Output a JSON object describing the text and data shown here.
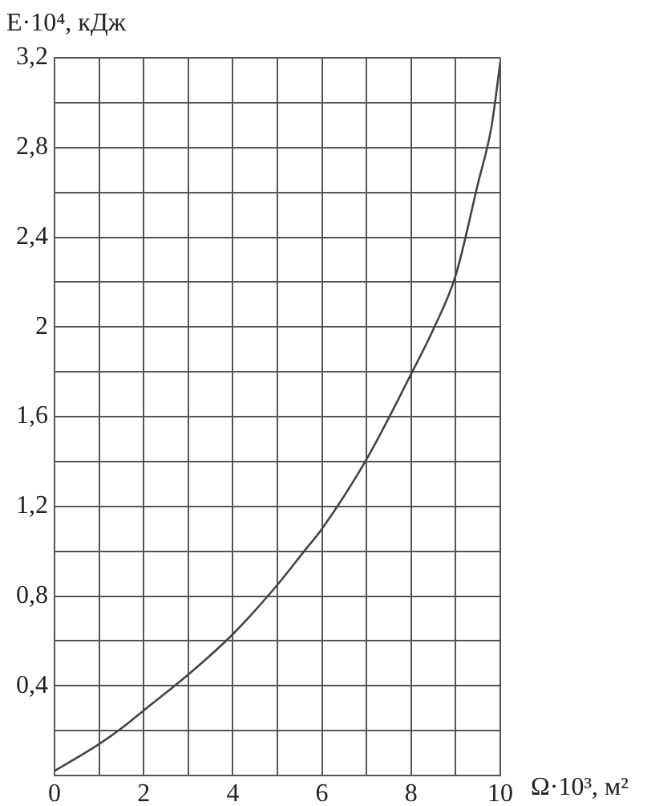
{
  "chart_data": {
    "type": "line",
    "xlabel": "Ω·10³, м²",
    "ylabel": "E·10⁴, кДж",
    "x": [
      0,
      1,
      1.5,
      2,
      3,
      4,
      5,
      5.6,
      6,
      7,
      8,
      8.5,
      9,
      9.5,
      9.8,
      10
    ],
    "series": [
      {
        "color": "#444444",
        "values": [
          0.02,
          0.14,
          0.21,
          0.29,
          0.45,
          0.63,
          0.85,
          1.0,
          1.1,
          1.41,
          1.79,
          1.99,
          2.23,
          2.64,
          2.89,
          3.18
        ]
      }
    ],
    "xlim": [
      0,
      10
    ],
    "ylim": [
      0,
      3.2
    ],
    "xticks": [
      0,
      {
        "value": 1,
        "label": null
      },
      2,
      {
        "value": 3,
        "label": null
      },
      4,
      {
        "value": 5,
        "label": null
      },
      6,
      {
        "value": 7,
        "label": null
      },
      8,
      {
        "value": 9,
        "label": null
      },
      10
    ],
    "yticks": [
      {
        "value": 0,
        "label": null
      },
      {
        "value": 0.2,
        "label": null
      },
      {
        "value": 0.4,
        "label": "0,4"
      },
      {
        "value": 0.6,
        "label": null
      },
      {
        "value": 0.8,
        "label": "0,8"
      },
      {
        "value": 1.0,
        "label": null
      },
      {
        "value": 1.2,
        "label": "1,2"
      },
      {
        "value": 1.4,
        "label": null
      },
      {
        "value": 1.6,
        "label": "1,6"
      },
      {
        "value": 1.8,
        "label": null
      },
      {
        "value": 2.0,
        "label": "2"
      },
      {
        "value": 2.2,
        "label": null
      },
      {
        "value": 2.4,
        "label": "2,4"
      },
      {
        "value": 2.6,
        "label": null
      },
      {
        "value": 2.8,
        "label": "2,8"
      },
      {
        "value": 3.0,
        "label": null
      },
      {
        "value": 3.2,
        "label": "3,2"
      }
    ],
    "grid": true
  }
}
